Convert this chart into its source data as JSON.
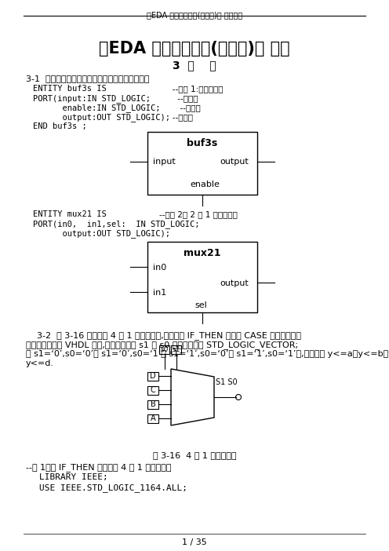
{
  "header_text": "《EDA 技术实用教程(第四版)》 习题答案",
  "title": "《EDA 技术实用教程(第四版)》 习题",
  "subtitle": "3  习    题",
  "bg_color": "#ffffff",
  "footer": "1 / 35",
  "section31_title": "3-1  画出与以下实体描述对应的原理图符号元件：",
  "fig_caption": "图 3-16  4 选 1 多路选择器"
}
